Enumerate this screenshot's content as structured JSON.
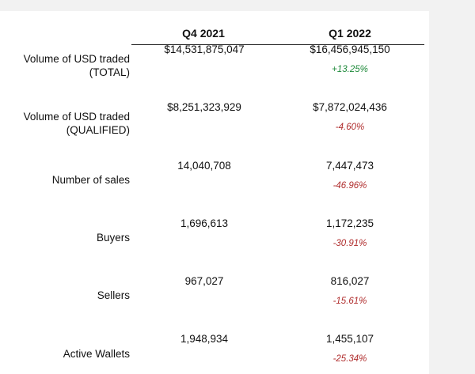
{
  "columns": [
    "Q4 2021",
    "Q1 2022"
  ],
  "rows": [
    {
      "label_line1": "Volume of USD traded",
      "label_line2": "(TOTAL)",
      "q4": "$14,531,875,047",
      "q1": "$16,456,945,150",
      "change": "+13.25%",
      "direction": "positive"
    },
    {
      "label_line1": "Volume of USD traded",
      "label_line2": "(QUALIFIED)",
      "q4": "$8,251,323,929",
      "q1": "$7,872,024,436",
      "change": "-4.60%",
      "direction": "negative"
    },
    {
      "label_line1": "Number of sales",
      "label_line2": "",
      "q4": "14,040,708",
      "q1": "7,447,473",
      "change": "-46.96%",
      "direction": "negative"
    },
    {
      "label_line1": "Buyers",
      "label_line2": "",
      "q4": "1,696,613",
      "q1": "1,172,235",
      "change": "-30.91%",
      "direction": "negative"
    },
    {
      "label_line1": "Sellers",
      "label_line2": "",
      "q4": "967,027",
      "q1": "816,027",
      "change": "-15.61%",
      "direction": "negative"
    },
    {
      "label_line1": "Active Wallets",
      "label_line2": "",
      "q4": "1,948,934",
      "q1": "1,455,107",
      "change": "-25.34%",
      "direction": "negative"
    }
  ],
  "colors": {
    "positive": "#1f8a3b",
    "negative": "#b02e2e"
  }
}
